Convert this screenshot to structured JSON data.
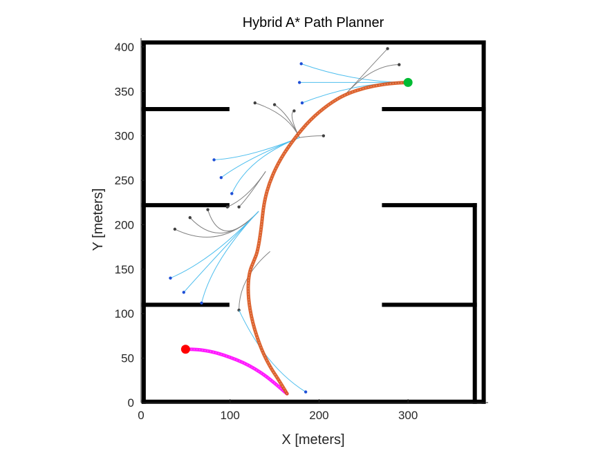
{
  "chart_data": {
    "type": "line",
    "title": "Hybrid A* Path Planner",
    "xlabel": "X [meters]",
    "ylabel": "Y [meters]",
    "xlim": [
      0,
      390
    ],
    "ylim": [
      0,
      410
    ],
    "x_ticks": [
      0,
      100,
      200,
      300
    ],
    "y_ticks": [
      0,
      50,
      100,
      150,
      200,
      250,
      300,
      350,
      400
    ],
    "grid": false,
    "legend": "none",
    "colors": {
      "obstacle": "#000000",
      "path_reverse": "#ff00ff",
      "path_forward": "#d95319",
      "search_forward": "#4dbeee",
      "search_reverse": "#808080",
      "node_forward": "#1f4fd6",
      "node_reverse": "#404040",
      "start": "#ff0000",
      "goal": "#00bb33"
    },
    "start": [
      50,
      60
    ],
    "goal": [
      300,
      360
    ],
    "walls": [
      [
        [
          3,
          405
        ],
        [
          385,
          405
        ]
      ],
      [
        [
          3,
          1
        ],
        [
          385,
          1
        ]
      ],
      [
        [
          3,
          1
        ],
        [
          3,
          405
        ]
      ],
      [
        [
          385,
          1
        ],
        [
          385,
          405
        ]
      ],
      [
        [
          3,
          330
        ],
        [
          97,
          330
        ]
      ],
      [
        [
          273,
          330
        ],
        [
          385,
          330
        ]
      ],
      [
        [
          3,
          222
        ],
        [
          97,
          222
        ]
      ],
      [
        [
          273,
          222
        ],
        [
          375,
          222
        ]
      ],
      [
        [
          3,
          110
        ],
        [
          97,
          110
        ]
      ],
      [
        [
          273,
          110
        ],
        [
          375,
          110
        ]
      ],
      [
        [
          375,
          1
        ],
        [
          375,
          222
        ]
      ]
    ],
    "series": [
      {
        "values": [
          [
            50,
            60
          ],
          [
            58,
            60
          ],
          [
            70,
            59
          ],
          [
            85,
            56
          ],
          [
            100,
            51
          ],
          [
            115,
            45
          ],
          [
            128,
            38
          ],
          [
            140,
            30
          ],
          [
            150,
            22
          ],
          [
            158,
            15
          ],
          [
            164,
            10
          ]
        ]
      },
      {
        "values": [
          [
            164,
            10
          ],
          [
            155,
            25
          ],
          [
            145,
            40
          ],
          [
            135,
            60
          ],
          [
            125,
            90
          ],
          [
            120,
            120
          ],
          [
            121,
            145
          ],
          [
            127,
            160
          ],
          [
            131,
            170
          ],
          [
            135,
            195
          ],
          [
            138,
            225
          ],
          [
            145,
            250
          ],
          [
            157,
            275
          ],
          [
            173,
            298
          ],
          [
            190,
            318
          ],
          [
            210,
            335
          ],
          [
            230,
            347
          ],
          [
            255,
            355
          ],
          [
            280,
            359
          ],
          [
            300,
            360
          ]
        ]
      }
    ],
    "search_fans": [
      {
        "kind": "forward",
        "from": [
          300,
          360
        ],
        "via": [
          240,
          360
        ],
        "to": [
          [
            180,
            381
          ],
          [
            178,
            360
          ],
          [
            181,
            337
          ]
        ]
      },
      {
        "kind": "reverse",
        "from": [
          230,
          347
        ],
        "via": [
          260,
          380
        ],
        "to": [
          [
            277,
            398
          ],
          [
            290,
            380
          ]
        ]
      },
      {
        "kind": "reverse",
        "from": [
          178,
          298
        ],
        "via": [
          165,
          325
        ],
        "to": [
          [
            128,
            337
          ],
          [
            150,
            335
          ],
          [
            172,
            328
          ]
        ]
      },
      {
        "kind": "reverse",
        "from": [
          178,
          298
        ],
        "via": [
          190,
          300
        ],
        "to": [
          [
            205,
            300
          ]
        ]
      },
      {
        "kind": "forward",
        "from": [
          178,
          298
        ],
        "via": [
          120,
          275
        ],
        "to": [
          [
            82,
            273
          ],
          [
            90,
            253
          ],
          [
            102,
            235
          ]
        ]
      },
      {
        "kind": "reverse",
        "from": [
          140,
          260
        ],
        "via": [
          120,
          230
        ],
        "to": [
          [
            97,
            220
          ],
          [
            110,
            220
          ]
        ]
      },
      {
        "kind": "reverse",
        "from": [
          132,
          215
        ],
        "via": [
          90,
          170
        ],
        "to": [
          [
            38,
            195
          ],
          [
            55,
            208
          ],
          [
            75,
            217
          ]
        ]
      },
      {
        "kind": "forward",
        "from": [
          132,
          215
        ],
        "via": [
          80,
          160
        ],
        "to": [
          [
            33,
            140
          ],
          [
            48,
            124
          ],
          [
            68,
            112
          ]
        ]
      },
      {
        "kind": "reverse",
        "from": [
          145,
          170
        ],
        "via": [
          110,
          140
        ],
        "to": [
          [
            110,
            104
          ]
        ]
      },
      {
        "kind": "forward",
        "from": [
          110,
          104
        ],
        "via": [
          140,
          40
        ],
        "to": [
          [
            185,
            12
          ]
        ]
      }
    ]
  }
}
